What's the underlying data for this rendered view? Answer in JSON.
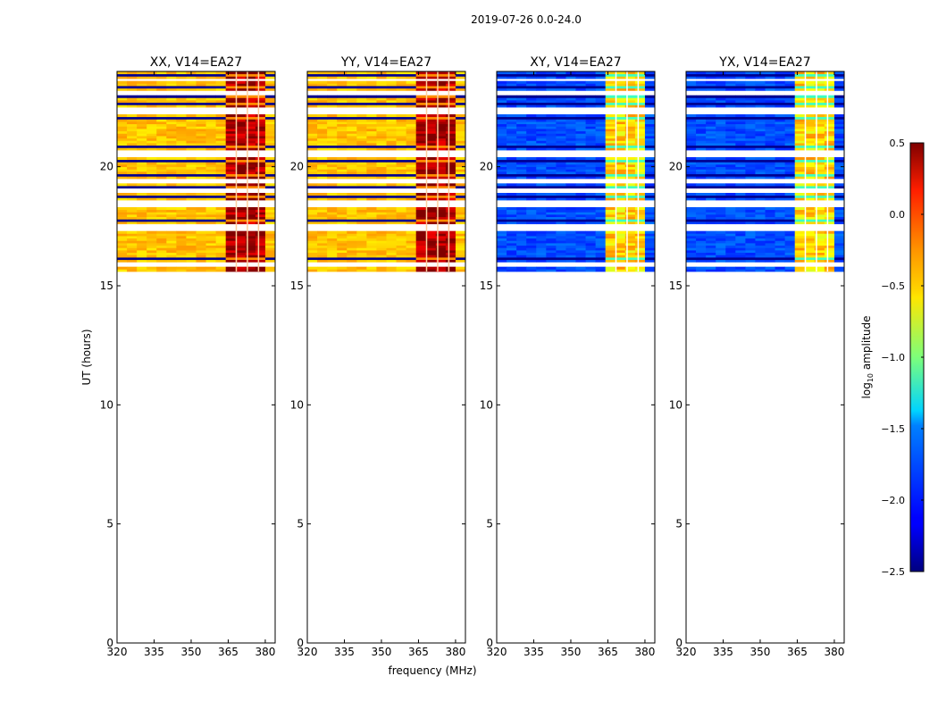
{
  "figure_title": "2019-07-26 0.0-24.0",
  "chart_data": {
    "type": "heatmap",
    "title": "2019-07-26 0.0-24.0",
    "xlabel": "frequency (MHz)",
    "ylabel": "UT (hours)",
    "xlim": [
      320,
      384
    ],
    "ylim": [
      0,
      24
    ],
    "xticks": [
      320,
      335,
      350,
      365,
      380
    ],
    "yticks": [
      0,
      5,
      10,
      15,
      20
    ],
    "data_time_range_hours": [
      15.6,
      24.0
    ],
    "panels": [
      {
        "title": "XX, V14=EA27",
        "polarization": "XX",
        "baseline": "V14=EA27",
        "base_level": -0.45,
        "band_level": 0.3
      },
      {
        "title": "YY, V14=EA27",
        "polarization": "YY",
        "baseline": "V14=EA27",
        "base_level": -0.45,
        "band_level": 0.3
      },
      {
        "title": "XY, V14=EA27",
        "polarization": "XY",
        "baseline": "V14=EA27",
        "base_level": -1.9,
        "band_level": -0.6
      },
      {
        "title": "YX, V14=EA27",
        "polarization": "YX",
        "baseline": "V14=EA27",
        "base_level": -1.9,
        "band_level": -0.6
      }
    ],
    "colorbar": {
      "label_base": "log",
      "label_sub": "10",
      "label_rest": " amplitude",
      "range": [
        -2.5,
        0.5
      ],
      "ticks": [
        "0.5",
        "0.0",
        "−0.5",
        "−1.0",
        "−1.5",
        "−2.0",
        "−2.5"
      ],
      "tick_values": [
        0.5,
        0.0,
        -0.5,
        -1.0,
        -1.5,
        -2.0,
        -2.5
      ],
      "colormap": "jet"
    },
    "strong_band_mhz": [
      363,
      380
    ]
  },
  "colors": {
    "frame": "#000000",
    "background": "#ffffff"
  }
}
